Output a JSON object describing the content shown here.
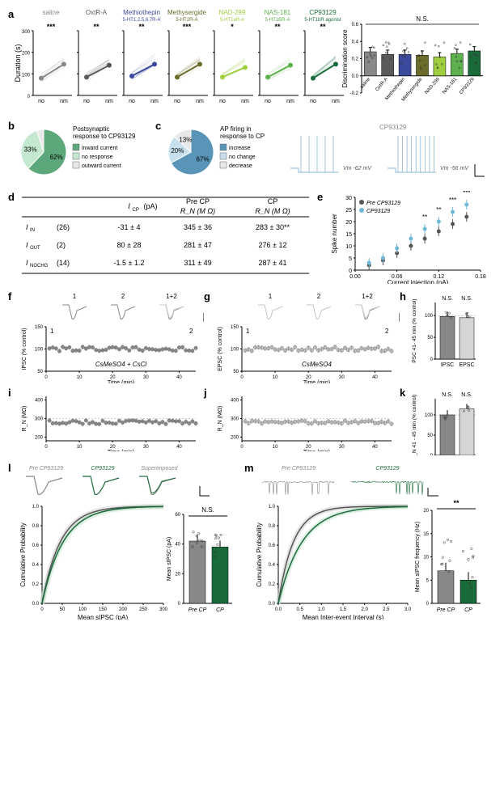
{
  "panel_a": {
    "drug_labels": [
      {
        "name": "saline",
        "sub": "",
        "color": "#888888"
      },
      {
        "name": "OxtR-A",
        "sub": "",
        "color": "#5a5a5a"
      },
      {
        "name": "Methiothepin",
        "sub": "5-HT1,2,5,6,7R-A",
        "color": "#3b4a9c"
      },
      {
        "name": "Methysergide",
        "sub": "5-HT2R-A",
        "color": "#6b6b2a"
      },
      {
        "name": "NAD-299",
        "sub": "5-HT1aR-A",
        "color": "#9fcf3f"
      },
      {
        "name": "NAS-181",
        "sub": "5-HT1BR-A",
        "color": "#5fb04f"
      },
      {
        "name": "CP93129",
        "sub": "5-HT1bR agonist",
        "color": "#1a6b3a"
      }
    ],
    "signif": [
      "***",
      "**",
      "**",
      "***",
      "*",
      "**",
      "**"
    ],
    "y_label": "Duration (s)",
    "y_max": 300,
    "y_ticks": [
      0,
      100,
      200,
      300
    ],
    "x_ticks": [
      "no",
      "nm"
    ],
    "line_data_no": [
      80,
      85,
      90,
      85,
      85,
      85,
      80
    ],
    "line_data_nm": [
      145,
      140,
      145,
      145,
      130,
      140,
      145
    ],
    "bar_panel": {
      "y_label": "Discrimination score",
      "y_ticks": [
        -0.2,
        0,
        0.2,
        0.4,
        0.6
      ],
      "ns_label": "N.S.",
      "x_labels": [
        "saline",
        "OxtR-A",
        "Methiothepin",
        "Methysergide",
        "NAD-299",
        "NAS-181",
        "CP93129"
      ],
      "values": [
        0.28,
        0.25,
        0.25,
        0.24,
        0.22,
        0.26,
        0.29
      ],
      "errors": [
        0.05,
        0.05,
        0.05,
        0.05,
        0.05,
        0.05,
        0.05
      ],
      "colors": [
        "#888888",
        "#5a5a5a",
        "#3b4a9c",
        "#6b6b2a",
        "#9fcf3f",
        "#5fb04f",
        "#1a6b3a"
      ]
    }
  },
  "panel_b": {
    "title": "Postsynaptic response to CP93129",
    "slices": [
      {
        "pct": 62,
        "label": "inward current",
        "color": "#5da87a"
      },
      {
        "pct": 33,
        "label": "no response",
        "color": "#c5e8d0"
      },
      {
        "pct": 5,
        "label": "outward current",
        "color": "#e8e8e8"
      }
    ]
  },
  "panel_c": {
    "title": "AP firing in response to CP",
    "slices": [
      {
        "pct": 67,
        "label": "increase",
        "color": "#5a95b8"
      },
      {
        "pct": 20,
        "label": "no change",
        "color": "#c8e0ed"
      },
      {
        "pct": 13,
        "label": "decrease",
        "color": "#e8e8e8"
      }
    ],
    "trace_labels": [
      "Vm -62 mV",
      "Vm -56 mV"
    ],
    "cp_label": "CP93129"
  },
  "panel_d": {
    "headers": [
      "",
      "I_CP (pA)",
      "Pre CP R_N (M Ω)",
      "CP R_N (M Ω)"
    ],
    "rows": [
      [
        "I_IN (26)",
        "-31 ± 4",
        "345 ± 36",
        "283 ± 30**"
      ],
      [
        "I_OUT (2)",
        "80 ± 28",
        "281 ± 47",
        "276 ± 12"
      ],
      [
        "I_NOCHG (14)",
        "-1.5 ± 1.2",
        "311 ± 49",
        "287 ± 41"
      ]
    ]
  },
  "panel_e": {
    "x_label": "Current injection (nA)",
    "y_label": "Spike number",
    "x_ticks": [
      0.0,
      0.06,
      0.12,
      0.18
    ],
    "y_ticks": [
      0,
      5,
      10,
      15,
      20,
      25,
      30
    ],
    "legend": [
      "Pre CP93129",
      "CP93129"
    ],
    "legend_colors": [
      "#555555",
      "#6fb8d6"
    ],
    "signif": [
      "**",
      "**",
      "***",
      "***"
    ],
    "x_vals": [
      0.02,
      0.04,
      0.06,
      0.08,
      0.1,
      0.12,
      0.14,
      0.16
    ],
    "pre_vals": [
      2,
      4,
      7,
      10,
      13,
      16,
      19,
      22
    ],
    "cp_vals": [
      3,
      5,
      9,
      13,
      17,
      20,
      24,
      27
    ]
  },
  "panel_f": {
    "y_label": "IPSC (% control)",
    "x_label": "Time (min)",
    "annotation": "CsMeSO4 + CsCl",
    "trace_labels": [
      "1",
      "2",
      "1+2"
    ],
    "y_ticks": [
      50,
      100,
      150
    ],
    "x_ticks": [
      0,
      10,
      20,
      30,
      40
    ],
    "color": "#888888"
  },
  "panel_g": {
    "y_label": "EPSC (% control)",
    "x_label": "Time (min)",
    "annotation": "CsMeSO4",
    "trace_labels": [
      "1",
      "2",
      "1+2"
    ],
    "y_ticks": [
      50,
      100,
      150
    ],
    "x_ticks": [
      0,
      10,
      20,
      30,
      40
    ],
    "color": "#c5c5c5"
  },
  "panel_h": {
    "y_label": "PSC 41- 45 min (% control)",
    "y_ticks": [
      0,
      50,
      100
    ],
    "bars": [
      "IPSC",
      "EPSC"
    ],
    "values": [
      98,
      95
    ],
    "colors": [
      "#888888",
      "#d5d5d5"
    ],
    "ns": "N.S."
  },
  "panel_i": {
    "y_label": "R_N (MΩ)",
    "x_label": "Time (min)",
    "y_ticks": [
      200,
      300,
      400
    ],
    "x_ticks": [
      0,
      10,
      20,
      30,
      40
    ],
    "color": "#888888"
  },
  "panel_j": {
    "y_label": "R_N (MΩ)",
    "x_label": "Time (min)",
    "y_ticks": [
      200,
      300,
      400
    ],
    "x_ticks": [
      0,
      10,
      20,
      30,
      40
    ],
    "color": "#c5c5c5"
  },
  "panel_k": {
    "y_label": "R_N 41 - 45 min (% control)",
    "y_ticks": [
      0,
      50,
      100
    ],
    "bars": [
      "IPSC",
      "EPSC"
    ],
    "values": [
      100,
      115
    ],
    "colors": [
      "#888888",
      "#d5d5d5"
    ],
    "ns": "N.S."
  },
  "panel_l": {
    "trace_labels": [
      "Pre CP93129",
      "CP93129",
      "Superimposed"
    ],
    "trace_colors": [
      "#888888",
      "#1a6b3a",
      "#888888"
    ],
    "cum_x_label": "Mean sIPSC (pA)",
    "cum_y_label": "Cumulative Probability",
    "cum_x_ticks": [
      0,
      50,
      100,
      150,
      200,
      250,
      300
    ],
    "cum_y_ticks": [
      0,
      0.2,
      0.4,
      0.6,
      0.8,
      1.0
    ],
    "bar_y_label": "Mean sIPSC (pA)",
    "bar_y_ticks": [
      0,
      20,
      40,
      60
    ],
    "bar_labels": [
      "Pre CP",
      "CP"
    ],
    "bar_values": [
      42,
      38
    ],
    "bar_colors": [
      "#888888",
      "#1a6b3a"
    ],
    "ns": "N.S."
  },
  "panel_m": {
    "trace_labels": [
      "Pre CP93129",
      "CP93129"
    ],
    "trace_colors": [
      "#888888",
      "#1a6b3a"
    ],
    "cum_x_label": "Mean Inter-event Interval (s)",
    "cum_y_label": "Cumulative Probability",
    "cum_x_ticks": [
      0.0,
      0.5,
      1.0,
      1.5,
      2.0,
      2.5,
      3.0
    ],
    "cum_y_ticks": [
      0,
      0.2,
      0.4,
      0.6,
      0.8,
      1.0
    ],
    "bar_y_label": "Mean sIPSC frequency (Hz)",
    "bar_y_ticks": [
      0,
      5,
      10,
      15,
      20
    ],
    "bar_labels": [
      "Pre CP",
      "CP"
    ],
    "bar_values": [
      7,
      5
    ],
    "bar_colors": [
      "#888888",
      "#1a6b3a"
    ],
    "signif": "**"
  }
}
